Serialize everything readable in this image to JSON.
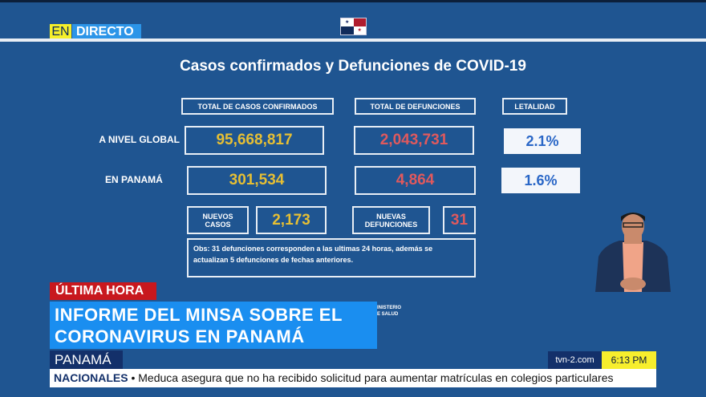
{
  "live_badge": {
    "en": "EN",
    "directo": "DIRECTO"
  },
  "flag_icon": "panama-flag",
  "title": "Casos confirmados y Defunciones de COVID-19",
  "headers": {
    "confirmed": "TOTAL DE CASOS CONFIRMADOS",
    "deaths": "TOTAL DE DEFUNCIONES",
    "lethality": "LETALIDAD"
  },
  "global": {
    "label": "A NIVEL GLOBAL",
    "confirmed": "95,668,817",
    "deaths": "2,043,731",
    "lethality": "2.1%"
  },
  "panama": {
    "label": "EN PANAMÁ",
    "confirmed": "301,534",
    "deaths": "4,864",
    "lethality": "1.6%"
  },
  "new": {
    "cases_label_1": "NUEVOS",
    "cases_label_2": "CASOS",
    "cases": "2,173",
    "deaths_label_1": "NUEVAS",
    "deaths_label_2": "DEFUNCIONES",
    "deaths": "31"
  },
  "obs": {
    "line1": "Obs: 31 defunciones corresponden a las ultimas 24 horas, además se",
    "line2": "actualizan  5 defunciones de fechas anteriores."
  },
  "ministry": {
    "line1": "INISTERIO",
    "line2": "E SALUD"
  },
  "lower_third": {
    "badge": "ÚLTIMA HORA",
    "headline_1": "INFORME DEL MINSA SOBRE EL",
    "headline_2": "CORONAVIRUS EN PANAMÁ",
    "location": "PANAMÁ",
    "site": "tvn-2.com",
    "time": "6:13 PM"
  },
  "ticker": {
    "section": "NACIONALES",
    "bullet": "•",
    "text": "Meduca asegura que no ha recibido solicitud para aumentar matrículas en colegios particulares"
  },
  "colors": {
    "background": "#1f5591",
    "cases": "#e6bf34",
    "deaths": "#e0595d",
    "breaking": "#c8181e",
    "headline": "#1a8ef0",
    "time_bg": "#f7ee2d"
  }
}
